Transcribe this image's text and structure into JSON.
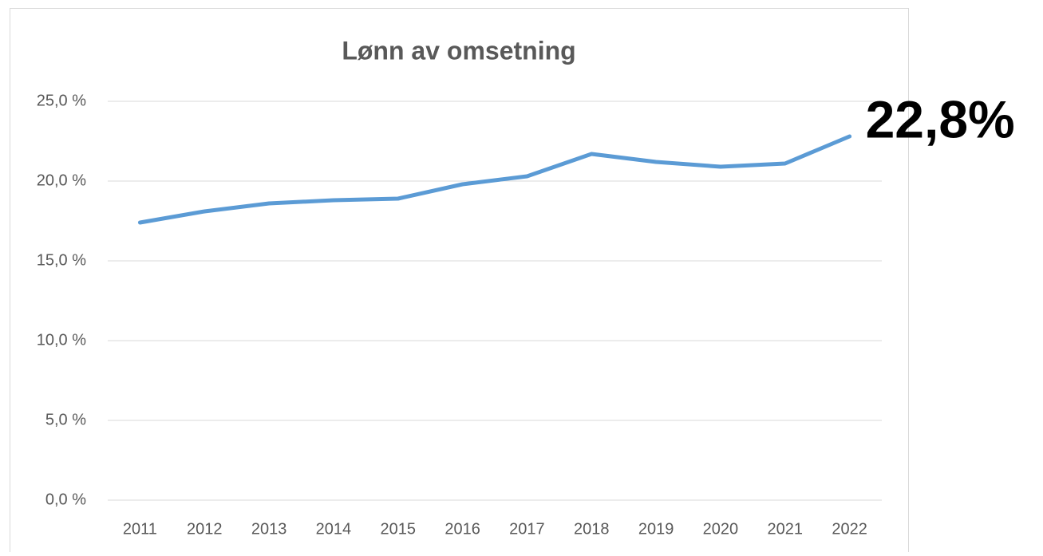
{
  "chart_data": {
    "type": "line",
    "title": "Lønn av omsetning",
    "categories": [
      "2011",
      "2012",
      "2013",
      "2014",
      "2015",
      "2016",
      "2017",
      "2018",
      "2019",
      "2020",
      "2021",
      "2022"
    ],
    "values": [
      17.4,
      18.1,
      18.6,
      18.8,
      18.9,
      19.8,
      20.3,
      21.7,
      21.2,
      20.9,
      21.1,
      22.8
    ],
    "value_labels": [
      null,
      null,
      null,
      null,
      null,
      null,
      null,
      null,
      null,
      null,
      null,
      "22,8%"
    ],
    "color": "#5b9bd5",
    "ylim": [
      0,
      25
    ],
    "yticks": [
      {
        "value": 0,
        "label": "0,0 %"
      },
      {
        "value": 5,
        "label": "5,0 %"
      },
      {
        "value": 10,
        "label": "10,0 %"
      },
      {
        "value": 15,
        "label": "15,0 %"
      },
      {
        "value": 20,
        "label": "20,0 %"
      },
      {
        "value": 25,
        "label": "25,0 %"
      }
    ],
    "grid": true
  }
}
